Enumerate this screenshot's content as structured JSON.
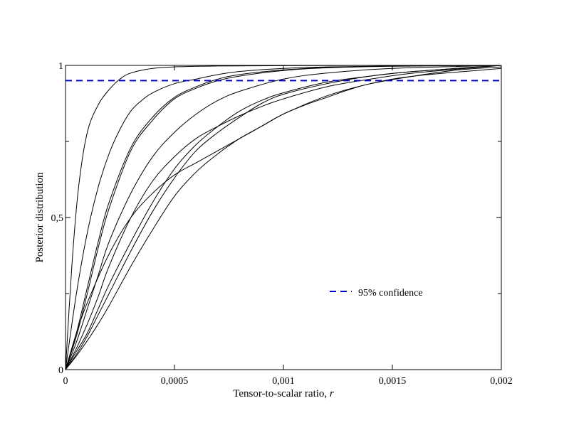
{
  "chart_data": {
    "type": "line",
    "xlabel_main": "Tensor-to-scalar ratio, ",
    "xlabel_var": "r",
    "ylabel": "Posterior distribution",
    "xlim": [
      0,
      0.002
    ],
    "ylim": [
      0,
      1
    ],
    "x_ticks": [
      {
        "value": 0,
        "label": "0"
      },
      {
        "value": 0.0005,
        "label": "0,0005"
      },
      {
        "value": 0.001,
        "label": "0,001"
      },
      {
        "value": 0.0015,
        "label": "0,0015"
      },
      {
        "value": 0.002,
        "label": "0,002"
      }
    ],
    "y_ticks": [
      {
        "value": 0,
        "label": "0"
      },
      {
        "value": 0.5,
        "label": "0,5"
      },
      {
        "value": 1,
        "label": "1"
      }
    ],
    "y_minor_ticks": [
      0.25,
      0.75
    ],
    "confidence_level": 0.95,
    "confidence_label": "95% confidence",
    "confidence_color": "#0000cc",
    "series": [
      {
        "x": [
          0,
          3e-05,
          6e-05,
          0.0001,
          0.00015,
          0.0002,
          0.00025,
          0.0003,
          0.0004,
          0.0005,
          0.0007,
          0.001,
          0.0015,
          0.002
        ],
        "y": [
          0,
          0.35,
          0.6,
          0.78,
          0.87,
          0.92,
          0.955,
          0.975,
          0.99,
          0.995,
          0.998,
          0.999,
          1,
          1
        ]
      },
      {
        "x": [
          0,
          5e-05,
          0.0001,
          0.00015,
          0.0002,
          0.00025,
          0.0003,
          0.00035,
          0.0004,
          0.0005,
          0.0006,
          0.0007,
          0.0008,
          0.001,
          0.0012,
          0.0015,
          0.002
        ],
        "y": [
          0,
          0.25,
          0.45,
          0.6,
          0.71,
          0.79,
          0.85,
          0.885,
          0.91,
          0.94,
          0.955,
          0.97,
          0.98,
          0.99,
          0.995,
          0.998,
          1
        ]
      },
      {
        "x": [
          0,
          5e-05,
          0.0001,
          0.00015,
          0.0002,
          0.0003,
          0.0004,
          0.0005,
          0.0006,
          0.0007,
          0.0008,
          0.001,
          0.0012,
          0.0015,
          0.002
        ],
        "y": [
          0,
          0.12,
          0.27,
          0.42,
          0.55,
          0.73,
          0.83,
          0.895,
          0.93,
          0.955,
          0.97,
          0.985,
          0.993,
          0.998,
          1
        ]
      },
      {
        "x": [
          0,
          5e-05,
          0.0001,
          0.00015,
          0.0002,
          0.0003,
          0.0004,
          0.0005,
          0.0006,
          0.0007,
          0.0008,
          0.001,
          0.0012,
          0.0015,
          0.002
        ],
        "y": [
          0,
          0.11,
          0.25,
          0.4,
          0.53,
          0.72,
          0.82,
          0.89,
          0.925,
          0.95,
          0.965,
          0.983,
          0.992,
          0.997,
          1
        ]
      },
      {
        "x": [
          0,
          5e-05,
          0.0001,
          0.00015,
          0.0002,
          0.0003,
          0.0004,
          0.0005,
          0.0006,
          0.0007,
          0.0008,
          0.001,
          0.0012,
          0.0015,
          0.002
        ],
        "y": [
          0,
          0.09,
          0.2,
          0.31,
          0.42,
          0.58,
          0.7,
          0.78,
          0.84,
          0.885,
          0.915,
          0.955,
          0.975,
          0.99,
          1
        ]
      },
      {
        "x": [
          0,
          5e-05,
          0.0001,
          0.00015,
          0.0002,
          0.0003,
          0.0004,
          0.0005,
          0.0006,
          0.0007,
          0.0008,
          0.0009,
          0.001,
          0.0012,
          0.0014,
          0.0016,
          0.002
        ],
        "y": [
          0,
          0.07,
          0.15,
          0.24,
          0.34,
          0.5,
          0.62,
          0.7,
          0.76,
          0.8,
          0.835,
          0.865,
          0.89,
          0.93,
          0.955,
          0.975,
          1
        ]
      },
      {
        "x": [
          0,
          5e-05,
          0.0001,
          0.00015,
          0.0002,
          0.0003,
          0.0004,
          0.0005,
          0.0006,
          0.0007,
          0.0008,
          0.0009,
          0.001,
          0.0012,
          0.0014,
          0.0016,
          0.002
        ],
        "y": [
          0,
          0.06,
          0.12,
          0.2,
          0.28,
          0.42,
          0.55,
          0.66,
          0.74,
          0.8,
          0.85,
          0.885,
          0.91,
          0.945,
          0.965,
          0.98,
          1
        ]
      },
      {
        "x": [
          0,
          5e-05,
          0.0001,
          0.00015,
          0.0002,
          0.0003,
          0.0004,
          0.0005,
          0.0006,
          0.0007,
          0.0008,
          0.0009,
          0.001,
          0.0012,
          0.0014,
          0.0016,
          0.002
        ],
        "y": [
          0,
          0.05,
          0.11,
          0.18,
          0.25,
          0.39,
          0.52,
          0.63,
          0.72,
          0.78,
          0.83,
          0.875,
          0.905,
          0.94,
          0.965,
          0.98,
          1
        ]
      },
      {
        "x": [
          0,
          5e-05,
          0.0001,
          0.00015,
          0.0002,
          0.0003,
          0.0004,
          0.0005,
          0.0006,
          0.0007,
          0.0008,
          0.0009,
          0.001,
          0.0012,
          0.0014,
          0.0016,
          0.002
        ],
        "y": [
          0,
          0.045,
          0.095,
          0.15,
          0.21,
          0.34,
          0.46,
          0.57,
          0.65,
          0.71,
          0.76,
          0.8,
          0.84,
          0.9,
          0.94,
          0.965,
          0.99
        ]
      },
      {
        "x": [
          0,
          5e-05,
          0.0001,
          0.0002,
          0.0003,
          0.0004,
          0.0005,
          0.0006,
          0.0007,
          0.0008,
          0.0009,
          0.001,
          0.0011,
          0.0012,
          0.0013,
          0.0014,
          0.0016,
          0.0018,
          0.002
        ],
        "y": [
          0,
          0.12,
          0.22,
          0.38,
          0.5,
          0.58,
          0.64,
          0.68,
          0.72,
          0.76,
          0.8,
          0.84,
          0.87,
          0.895,
          0.92,
          0.94,
          0.965,
          0.985,
          0.995
        ]
      }
    ]
  }
}
